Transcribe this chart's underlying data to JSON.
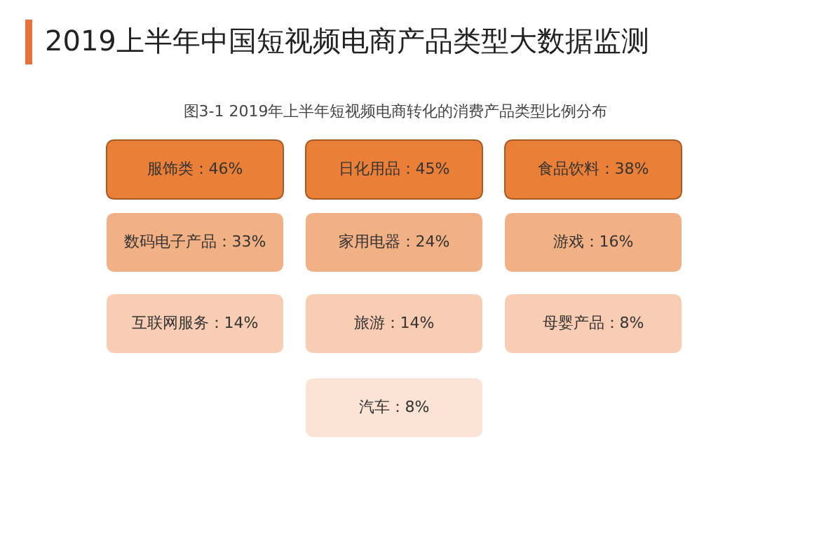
{
  "chart_data": {
    "type": "other",
    "title": "2019上半年中国短视频电商产品类型大数据监测",
    "subtitle": "图3-1 2019年上半年短视频电商转化的消费产品类型比例分布",
    "categories": [
      "服饰类",
      "日化用品",
      "食品饮料",
      "数码电子产品",
      "家用电器",
      "游戏",
      "互联网服务",
      "旅游",
      "母婴产品",
      "汽车"
    ],
    "values": [
      46,
      45,
      38,
      33,
      24,
      16,
      14,
      14,
      8,
      8
    ],
    "value_labels": [
      "：46%",
      "：45%",
      "：38%",
      "：33%",
      "：24%",
      "：16%",
      "：14%",
      "：14%",
      "：8%",
      "：8%"
    ],
    "colors": [
      "#ea8037",
      "#ea8037",
      "#ea8037",
      "#f2b185",
      "#f2b185",
      "#f2b185",
      "#f8cdb3",
      "#f8cdb3",
      "#f8cdb3",
      "#fbe4d6"
    ]
  }
}
